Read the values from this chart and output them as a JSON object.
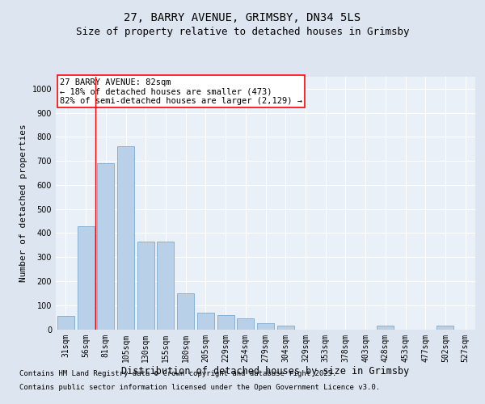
{
  "title_line1": "27, BARRY AVENUE, GRIMSBY, DN34 5LS",
  "title_line2": "Size of property relative to detached houses in Grimsby",
  "xlabel": "Distribution of detached houses by size in Grimsby",
  "ylabel": "Number of detached properties",
  "categories": [
    "31sqm",
    "56sqm",
    "81sqm",
    "105sqm",
    "130sqm",
    "155sqm",
    "180sqm",
    "205sqm",
    "229sqm",
    "254sqm",
    "279sqm",
    "304sqm",
    "329sqm",
    "353sqm",
    "378sqm",
    "403sqm",
    "428sqm",
    "453sqm",
    "477sqm",
    "502sqm",
    "527sqm"
  ],
  "values": [
    55,
    430,
    690,
    760,
    365,
    365,
    150,
    70,
    60,
    45,
    25,
    15,
    0,
    0,
    0,
    0,
    15,
    0,
    0,
    15,
    0
  ],
  "bar_color": "#b8d0e8",
  "bar_edge_color": "#7aaad0",
  "vline_x_index": 2,
  "vline_color": "red",
  "annotation_text": "27 BARRY AVENUE: 82sqm\n← 18% of detached houses are smaller (473)\n82% of semi-detached houses are larger (2,129) →",
  "annotation_box_facecolor": "white",
  "annotation_box_edgecolor": "red",
  "ylim": [
    0,
    1050
  ],
  "yticks": [
    0,
    100,
    200,
    300,
    400,
    500,
    600,
    700,
    800,
    900,
    1000
  ],
  "bg_color": "#dde6f0",
  "plot_bg_color": "#eaf0f8",
  "grid_color": "#ffffff",
  "footer_line1": "Contains HM Land Registry data © Crown copyright and database right 2025.",
  "footer_line2": "Contains public sector information licensed under the Open Government Licence v3.0.",
  "title_fontsize": 10,
  "subtitle_fontsize": 9,
  "ylabel_fontsize": 8,
  "xlabel_fontsize": 8.5,
  "tick_fontsize": 7,
  "annotation_fontsize": 7.5,
  "footer_fontsize": 6.5
}
